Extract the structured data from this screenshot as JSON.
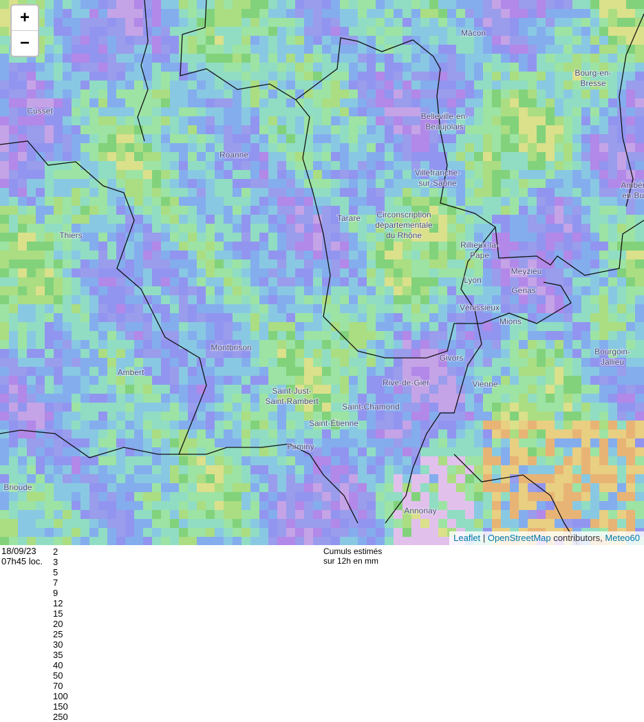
{
  "zoom": {
    "in": "+",
    "out": "−"
  },
  "places": [
    {
      "lines": [
        "Mâcon"
      ]
    },
    {
      "lines": [
        "Cusset"
      ]
    },
    {
      "lines": [
        "Bourg-en-",
        "Bresse"
      ]
    },
    {
      "lines": [
        "Belleville-en-",
        "Beaujolais"
      ]
    },
    {
      "lines": [
        "Roanne"
      ]
    },
    {
      "lines": [
        "Villefranche-",
        "sur-Saône"
      ]
    },
    {
      "lines": [
        "Ambér",
        "en-Bu"
      ]
    },
    {
      "lines": [
        "Tarare"
      ]
    },
    {
      "lines": [
        "Circonscription",
        "départementale",
        "du Rhône"
      ]
    },
    {
      "lines": [
        "Thiers"
      ]
    },
    {
      "lines": [
        "Rillieux-la-",
        "Pape"
      ]
    },
    {
      "lines": [
        "Lyon"
      ]
    },
    {
      "lines": [
        "Meyzieu"
      ]
    },
    {
      "lines": [
        "Genas"
      ]
    },
    {
      "lines": [
        "Vénissieux"
      ]
    },
    {
      "lines": [
        "Mions"
      ]
    },
    {
      "lines": [
        "Montbrison"
      ]
    },
    {
      "lines": [
        "Bourgoin-",
        "Jallieu"
      ]
    },
    {
      "lines": [
        "Givors"
      ]
    },
    {
      "lines": [
        "Ambert"
      ]
    },
    {
      "lines": [
        "Rive-de-Gier"
      ]
    },
    {
      "lines": [
        "Vienne"
      ]
    },
    {
      "lines": [
        "Saint-Just-",
        "Saint-Rambert"
      ]
    },
    {
      "lines": [
        "Saint-Chamond"
      ]
    },
    {
      "lines": [
        "Saint-Étienne"
      ]
    },
    {
      "lines": [
        "Firminy"
      ]
    },
    {
      "lines": [
        "Brioude"
      ]
    },
    {
      "lines": [
        "Annonay"
      ]
    }
  ],
  "attribution": {
    "leaflet": "Leaflet",
    "sep": "|",
    "osm": "OpenStreetMap",
    "text": "contributors,",
    "meteo": "Meteo60"
  },
  "footer": {
    "date": "18/09/23",
    "time": "07h45 loc.",
    "caption": [
      "Cumuls estimés",
      "sur 12h en mm"
    ]
  },
  "legend": [
    {
      "color": "#e8a6ec",
      "label": 2
    },
    {
      "color": "#c98ae8",
      "label": 3
    },
    {
      "color": "#9a1ee8",
      "label": 5
    },
    {
      "color": "#18b4e0",
      "label": 7
    },
    {
      "color": "#1c7ce0",
      "label": 9
    },
    {
      "color": "#1428d8",
      "label": 12
    },
    {
      "color": "#7cf0b4",
      "label": 15
    },
    {
      "color": "#78dc28",
      "label": 20
    },
    {
      "color": "#1cc43c",
      "label": 25
    },
    {
      "color": "#14a82c",
      "label": 30
    },
    {
      "color": "#f8f040",
      "label": 35
    },
    {
      "color": "#f8c800",
      "label": 40
    },
    {
      "color": "#f88c00",
      "label": 50
    },
    {
      "color": "#f86868",
      "label": 70
    },
    {
      "color": "#f00000",
      "label": 100
    },
    {
      "color": "#f858f0",
      "label": 150
    },
    {
      "color": "#e010d8",
      "label": 250
    }
  ]
}
